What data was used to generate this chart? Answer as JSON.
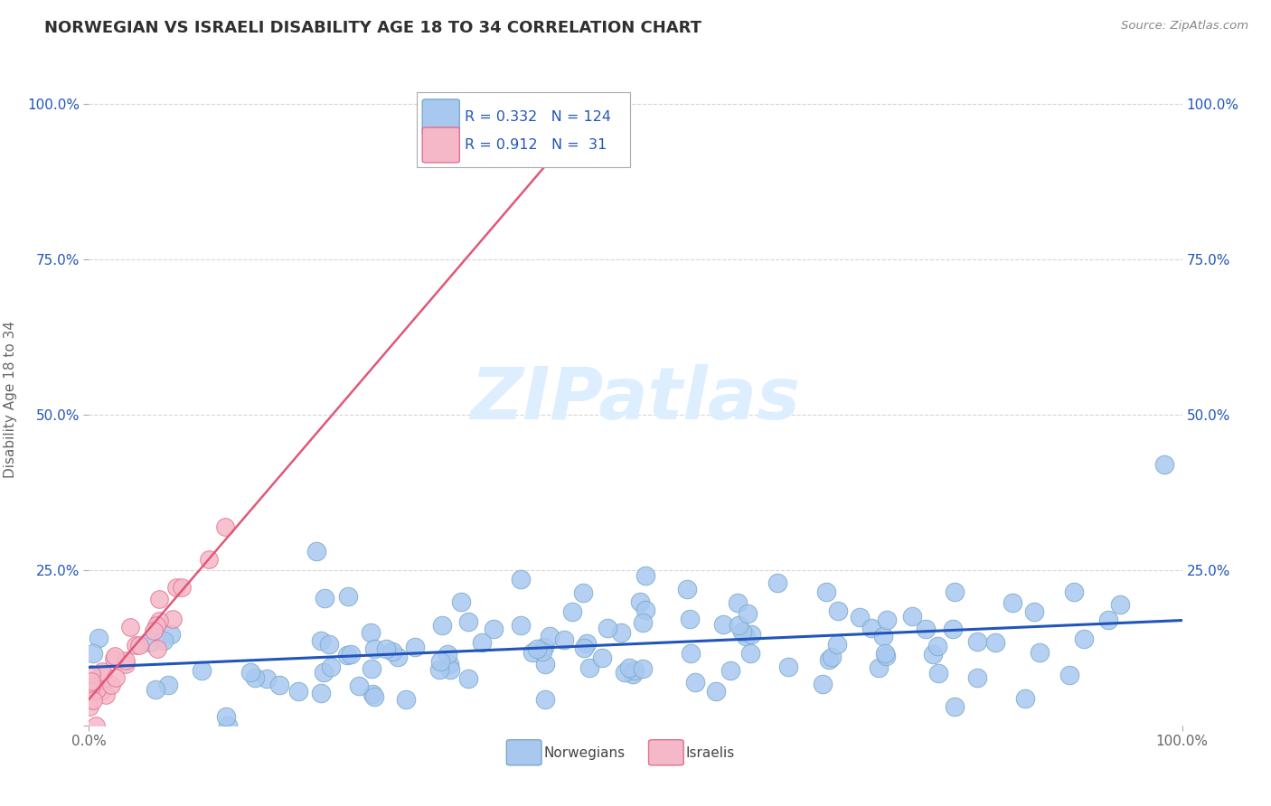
{
  "title": "NORWEGIAN VS ISRAELI DISABILITY AGE 18 TO 34 CORRELATION CHART",
  "source_text": "Source: ZipAtlas.com",
  "ylabel": "Disability Age 18 to 34",
  "x_range": [
    0.0,
    1.0
  ],
  "y_range": [
    0.0,
    1.05
  ],
  "norwegian_R": 0.332,
  "norwegian_N": 124,
  "israeli_R": 0.912,
  "israeli_N": 31,
  "norwegian_color": "#a8c8f0",
  "norwegian_edge_color": "#7aaac8",
  "israeli_color": "#f5b8c8",
  "israeli_edge_color": "#e07090",
  "trend_norwegian_color": "#2255bb",
  "trend_israeli_color": "#e05878",
  "background_color": "#ffffff",
  "grid_color": "#cccccc",
  "watermark_color": "#ddeeff",
  "legend_text_color": "#2255bb",
  "title_color": "#303030",
  "tick_color": "#2255bb",
  "axis_label_color": "#666666"
}
